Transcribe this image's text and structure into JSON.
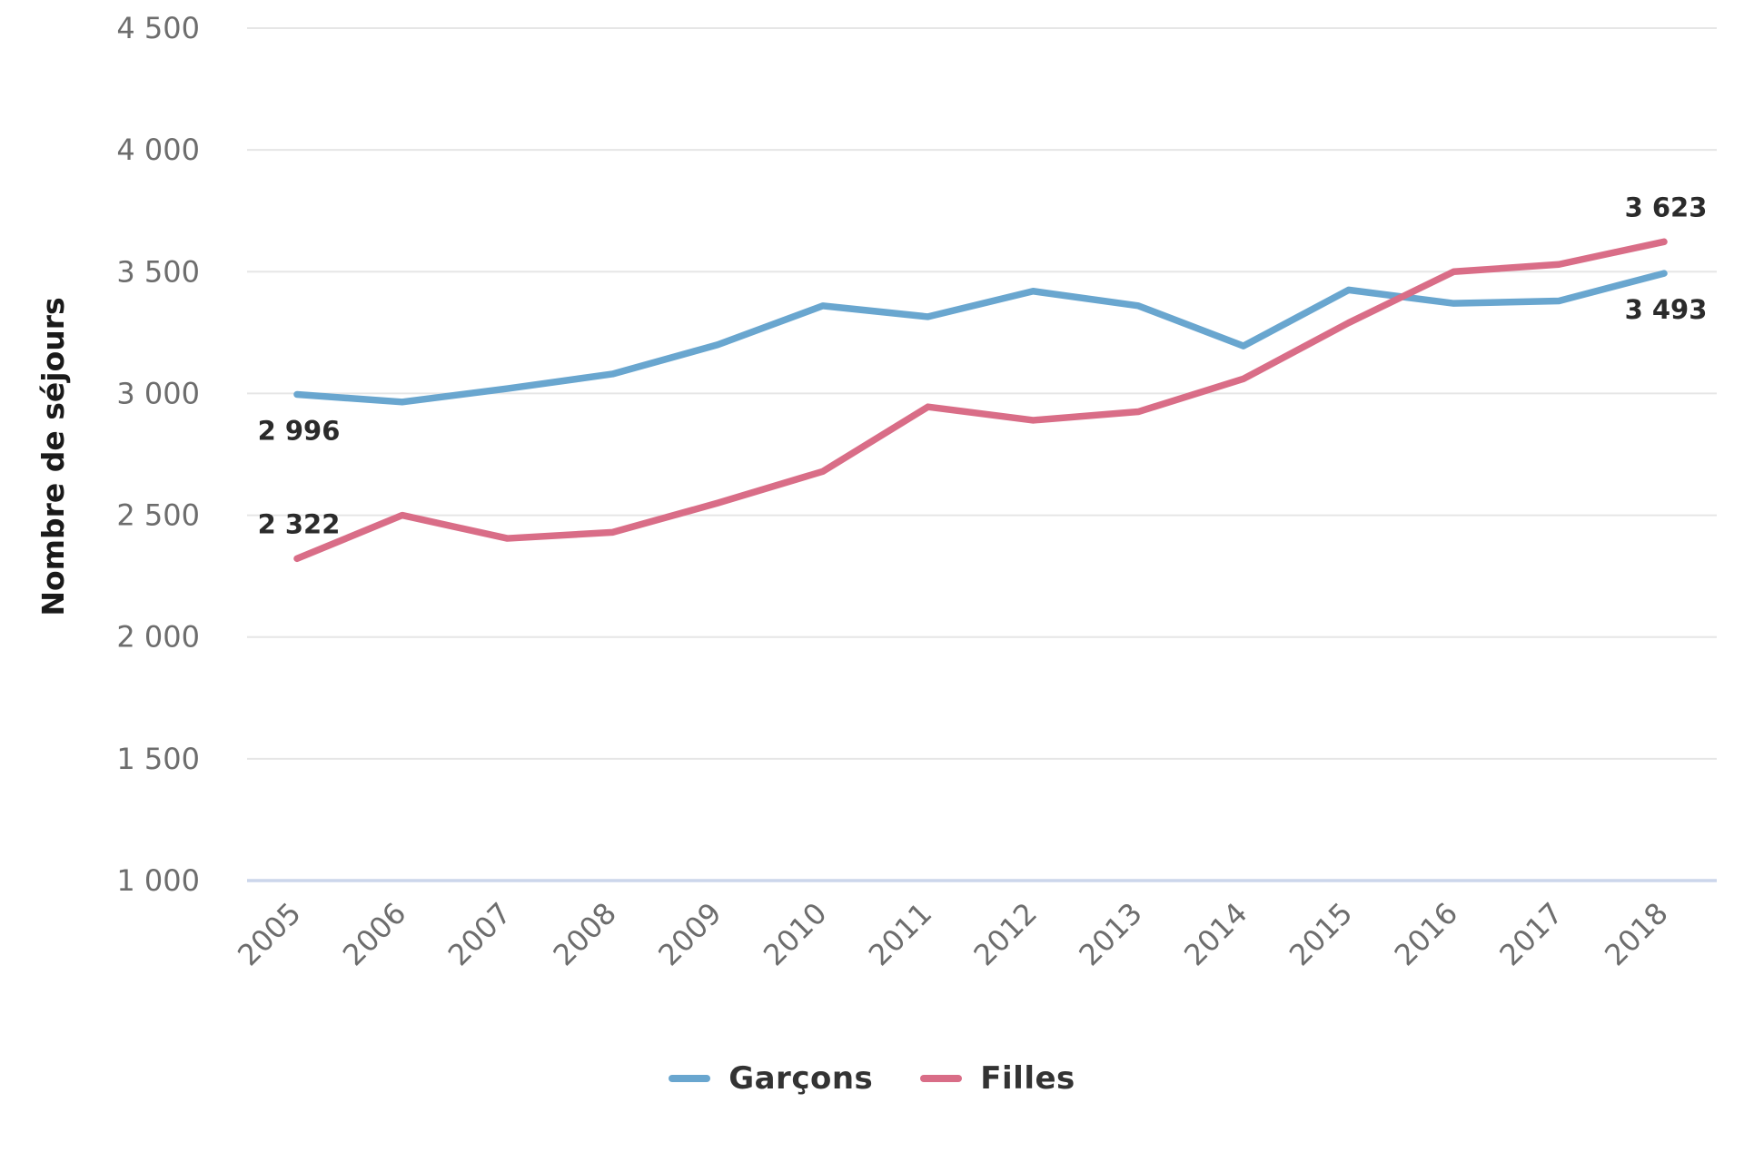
{
  "chart_data": {
    "type": "line",
    "categories": [
      "2005",
      "2006",
      "2007",
      "2008",
      "2009",
      "2010",
      "2011",
      "2012",
      "2013",
      "2014",
      "2015",
      "2016",
      "2017",
      "2018"
    ],
    "series": [
      {
        "name": "Garçons",
        "color": "#69A6CF",
        "values": [
          2996,
          2965,
          3020,
          3080,
          3200,
          3360,
          3315,
          3420,
          3360,
          3195,
          3425,
          3370,
          3380,
          3493
        ]
      },
      {
        "name": "Filles",
        "color": "#D96D87",
        "values": [
          2322,
          2500,
          2405,
          2430,
          2550,
          2680,
          2945,
          2890,
          2925,
          3060,
          3290,
          3500,
          3530,
          3623
        ]
      }
    ],
    "title": "",
    "xlabel": "",
    "ylabel": "Nombre de séjours",
    "ylim": [
      1000,
      4500
    ],
    "yticks": [
      {
        "value": 4500,
        "label": "4 500"
      },
      {
        "value": 4000,
        "label": "4 000"
      },
      {
        "value": 3500,
        "label": "3 500"
      },
      {
        "value": 3000,
        "label": "3 000"
      },
      {
        "value": 2500,
        "label": "2 500"
      },
      {
        "value": 2000,
        "label": "2 000"
      },
      {
        "value": 1500,
        "label": "1 500"
      },
      {
        "value": 1000,
        "label": "1 000"
      }
    ],
    "grid": true,
    "legend_position": "bottom",
    "point_labels": [
      {
        "series_index": 0,
        "point_index": 0,
        "text": "2 996",
        "placement": "below"
      },
      {
        "series_index": 1,
        "point_index": 0,
        "text": "2 322",
        "placement": "above"
      },
      {
        "series_index": 1,
        "point_index": 13,
        "text": "3 623",
        "placement": "above"
      },
      {
        "series_index": 0,
        "point_index": 13,
        "text": "3 493",
        "placement": "below"
      }
    ],
    "colors": {
      "grid": "#E6E6E6",
      "axis_line": "#CCD6EB",
      "tick_text": "#6D6D6D",
      "data_label_text": "#2B2B2B",
      "axis_title_text": "#1A1A1A",
      "legend_text": "#333333",
      "background": "#FFFFFF"
    }
  }
}
